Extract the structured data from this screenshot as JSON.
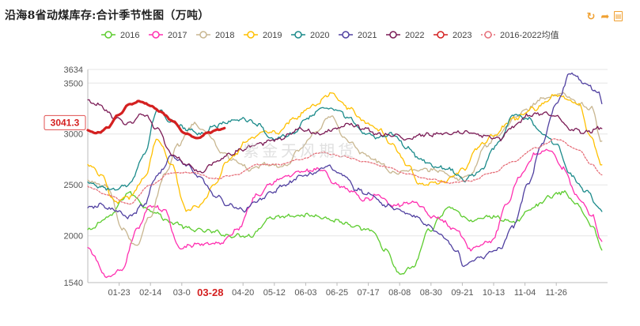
{
  "title": "沿海8省动煤库存:合计季节性图（万吨）",
  "toolbar": [
    {
      "name": "refresh-icon",
      "glyph": "↻"
    },
    {
      "name": "share-icon",
      "glyph": "➦"
    },
    {
      "name": "export-icon",
      "glyph": "▤"
    }
  ],
  "chart_data": {
    "type": "line",
    "title": "沿海8省动煤库存:合计季节性图（万吨）",
    "ylim": [
      1540,
      3634
    ],
    "yticks": [
      1540,
      2000,
      2500,
      3000,
      3500,
      3634
    ],
    "xticks": [
      {
        "label": "01-23",
        "day": 23
      },
      {
        "label": "02-14",
        "day": 45
      },
      {
        "label": "03-0",
        "day": 67
      },
      {
        "label": "04-20",
        "day": 110
      },
      {
        "label": "05-12",
        "day": 132
      },
      {
        "label": "06-03",
        "day": 154
      },
      {
        "label": "06-25",
        "day": 176
      },
      {
        "label": "07-17",
        "day": 198
      },
      {
        "label": "08-08",
        "day": 220
      },
      {
        "label": "08-30",
        "day": 242
      },
      {
        "label": "09-21",
        "day": 264
      },
      {
        "label": "10-13",
        "day": 286
      },
      {
        "label": "11-04",
        "day": 308
      },
      {
        "label": "11-26",
        "day": 330
      }
    ],
    "current_date_label": {
      "label": "03-28",
      "day": 87
    },
    "current_value_label": {
      "label": "3041.3",
      "value": 3041.3
    },
    "watermark": "紫金天风期货",
    "series": [
      {
        "name": "2016",
        "color": "#5ccc2e",
        "style": "solid",
        "width": 1.3,
        "points": [
          [
            1,
            2050
          ],
          [
            15,
            2180
          ],
          [
            30,
            2420
          ],
          [
            45,
            2250
          ],
          [
            60,
            2130
          ],
          [
            75,
            2060
          ],
          [
            90,
            2040
          ],
          [
            100,
            2000
          ],
          [
            115,
            2000
          ],
          [
            130,
            2180
          ],
          [
            145,
            2200
          ],
          [
            160,
            2200
          ],
          [
            175,
            2150
          ],
          [
            190,
            2080
          ],
          [
            200,
            2050
          ],
          [
            210,
            1860
          ],
          [
            220,
            1620
          ],
          [
            230,
            1700
          ],
          [
            240,
            2050
          ],
          [
            255,
            2280
          ],
          [
            270,
            2150
          ],
          [
            285,
            2190
          ],
          [
            300,
            2130
          ],
          [
            315,
            2290
          ],
          [
            325,
            2380
          ],
          [
            335,
            2430
          ],
          [
            345,
            2300
          ],
          [
            355,
            2100
          ],
          [
            362,
            1880
          ]
        ]
      },
      {
        "name": "2017",
        "color": "#ff2fb0",
        "style": "solid",
        "width": 1.3,
        "points": [
          [
            1,
            1870
          ],
          [
            15,
            1590
          ],
          [
            25,
            1660
          ],
          [
            35,
            2050
          ],
          [
            45,
            2300
          ],
          [
            55,
            2250
          ],
          [
            65,
            1880
          ],
          [
            80,
            1920
          ],
          [
            95,
            1930
          ],
          [
            105,
            2050
          ],
          [
            120,
            2400
          ],
          [
            130,
            2520
          ],
          [
            140,
            2580
          ],
          [
            150,
            2630
          ],
          [
            165,
            2650
          ],
          [
            175,
            2500
          ],
          [
            185,
            2450
          ],
          [
            195,
            2350
          ],
          [
            205,
            2400
          ],
          [
            215,
            2300
          ],
          [
            230,
            2330
          ],
          [
            245,
            2180
          ],
          [
            260,
            2060
          ],
          [
            270,
            1870
          ],
          [
            285,
            1950
          ],
          [
            295,
            2300
          ],
          [
            305,
            2600
          ],
          [
            315,
            2800
          ],
          [
            325,
            2850
          ],
          [
            335,
            2660
          ],
          [
            345,
            2380
          ],
          [
            355,
            2200
          ],
          [
            362,
            1950
          ]
        ]
      },
      {
        "name": "2018",
        "color": "#c8b690",
        "style": "solid",
        "width": 1.3,
        "points": [
          [
            1,
            2540
          ],
          [
            15,
            2480
          ],
          [
            25,
            2070
          ],
          [
            35,
            1900
          ],
          [
            45,
            2200
          ],
          [
            55,
            2600
          ],
          [
            65,
            2900
          ],
          [
            75,
            3100
          ],
          [
            85,
            3010
          ],
          [
            95,
            2820
          ],
          [
            105,
            2730
          ],
          [
            115,
            2650
          ],
          [
            125,
            2700
          ],
          [
            140,
            2680
          ],
          [
            150,
            2850
          ],
          [
            160,
            3000
          ],
          [
            172,
            3180
          ],
          [
            182,
            2950
          ],
          [
            195,
            2800
          ],
          [
            205,
            2730
          ],
          [
            215,
            2620
          ],
          [
            230,
            2650
          ],
          [
            245,
            2650
          ],
          [
            260,
            2560
          ],
          [
            270,
            2600
          ],
          [
            280,
            2880
          ],
          [
            290,
            3000
          ],
          [
            300,
            3150
          ],
          [
            310,
            3250
          ],
          [
            320,
            3350
          ],
          [
            335,
            3400
          ],
          [
            345,
            3300
          ],
          [
            355,
            3250
          ],
          [
            362,
            2920
          ]
        ]
      },
      {
        "name": "2019",
        "color": "#ffc000",
        "style": "solid",
        "width": 1.3,
        "points": [
          [
            1,
            2700
          ],
          [
            10,
            2600
          ],
          [
            20,
            2330
          ],
          [
            30,
            2380
          ],
          [
            40,
            2550
          ],
          [
            50,
            2950
          ],
          [
            60,
            2700
          ],
          [
            70,
            2250
          ],
          [
            80,
            2300
          ],
          [
            90,
            2500
          ],
          [
            100,
            2750
          ],
          [
            115,
            2950
          ],
          [
            125,
            3020
          ],
          [
            135,
            3020
          ],
          [
            145,
            3150
          ],
          [
            160,
            3280
          ],
          [
            172,
            3400
          ],
          [
            185,
            3250
          ],
          [
            195,
            3120
          ],
          [
            205,
            3050
          ],
          [
            215,
            2900
          ],
          [
            225,
            2700
          ],
          [
            235,
            2500
          ],
          [
            250,
            2530
          ],
          [
            265,
            2650
          ],
          [
            275,
            2870
          ],
          [
            285,
            2980
          ],
          [
            300,
            3150
          ],
          [
            315,
            3250
          ],
          [
            330,
            3380
          ],
          [
            345,
            3300
          ],
          [
            355,
            2950
          ],
          [
            362,
            2680
          ]
        ]
      },
      {
        "name": "2020",
        "color": "#1a8a8a",
        "style": "solid",
        "width": 1.3,
        "points": [
          [
            1,
            2530
          ],
          [
            10,
            2480
          ],
          [
            20,
            2450
          ],
          [
            30,
            2500
          ],
          [
            40,
            2780
          ],
          [
            50,
            3240
          ],
          [
            60,
            3120
          ],
          [
            70,
            3050
          ],
          [
            80,
            3000
          ],
          [
            90,
            3080
          ],
          [
            100,
            3120
          ],
          [
            110,
            3150
          ],
          [
            120,
            3100
          ],
          [
            130,
            2950
          ],
          [
            145,
            3000
          ],
          [
            155,
            3150
          ],
          [
            165,
            3250
          ],
          [
            175,
            3250
          ],
          [
            185,
            3150
          ],
          [
            195,
            3000
          ],
          [
            205,
            2970
          ],
          [
            215,
            3000
          ],
          [
            225,
            2870
          ],
          [
            235,
            2750
          ],
          [
            245,
            2680
          ],
          [
            255,
            2650
          ],
          [
            265,
            2550
          ],
          [
            275,
            2620
          ],
          [
            290,
            2920
          ],
          [
            300,
            3200
          ],
          [
            310,
            3150
          ],
          [
            320,
            3000
          ],
          [
            330,
            2900
          ],
          [
            340,
            2600
          ],
          [
            350,
            2450
          ],
          [
            362,
            2250
          ]
        ]
      },
      {
        "name": "2021",
        "color": "#5040a0",
        "style": "solid",
        "width": 1.3,
        "points": [
          [
            1,
            2270
          ],
          [
            10,
            2300
          ],
          [
            20,
            2250
          ],
          [
            30,
            2180
          ],
          [
            40,
            2300
          ],
          [
            50,
            2600
          ],
          [
            60,
            2780
          ],
          [
            70,
            2700
          ],
          [
            80,
            2570
          ],
          [
            90,
            2400
          ],
          [
            100,
            2300
          ],
          [
            110,
            2250
          ],
          [
            120,
            2340
          ],
          [
            130,
            2430
          ],
          [
            140,
            2500
          ],
          [
            150,
            2580
          ],
          [
            160,
            2620
          ],
          [
            170,
            2680
          ],
          [
            180,
            2600
          ],
          [
            190,
            2450
          ],
          [
            200,
            2400
          ],
          [
            210,
            2300
          ],
          [
            220,
            2250
          ],
          [
            230,
            2200
          ],
          [
            240,
            2100
          ],
          [
            250,
            2000
          ],
          [
            260,
            1850
          ],
          [
            265,
            1700
          ],
          [
            275,
            1780
          ],
          [
            290,
            1870
          ],
          [
            300,
            2100
          ],
          [
            310,
            2500
          ],
          [
            320,
            2900
          ],
          [
            330,
            3300
          ],
          [
            340,
            3600
          ],
          [
            350,
            3500
          ],
          [
            360,
            3400
          ],
          [
            362,
            3310
          ]
        ]
      },
      {
        "name": "2022",
        "color": "#7a1a55",
        "style": "solid",
        "width": 1.3,
        "points": [
          [
            1,
            3320
          ],
          [
            10,
            3280
          ],
          [
            20,
            3150
          ],
          [
            30,
            3100
          ],
          [
            40,
            3200
          ],
          [
            50,
            3050
          ],
          [
            60,
            2800
          ],
          [
            70,
            2700
          ],
          [
            80,
            2620
          ],
          [
            90,
            2720
          ],
          [
            100,
            2800
          ],
          [
            110,
            2850
          ],
          [
            120,
            2900
          ],
          [
            135,
            2950
          ],
          [
            150,
            3050
          ],
          [
            165,
            3000
          ],
          [
            175,
            3050
          ],
          [
            185,
            3100
          ],
          [
            195,
            3050
          ],
          [
            205,
            3000
          ],
          [
            215,
            2990
          ],
          [
            225,
            2950
          ],
          [
            235,
            2990
          ],
          [
            250,
            3000
          ],
          [
            265,
            3020
          ],
          [
            280,
            2980
          ],
          [
            290,
            2950
          ],
          [
            300,
            3080
          ],
          [
            310,
            3180
          ],
          [
            320,
            3200
          ],
          [
            330,
            3180
          ],
          [
            340,
            3050
          ],
          [
            350,
            3020
          ],
          [
            362,
            3060
          ]
        ]
      },
      {
        "name": "2023",
        "color": "#d42020",
        "style": "solid",
        "width": 3.2,
        "points": [
          [
            1,
            3030
          ],
          [
            8,
            3010
          ],
          [
            15,
            3060
          ],
          [
            22,
            3180
          ],
          [
            30,
            3290
          ],
          [
            38,
            3320
          ],
          [
            45,
            3280
          ],
          [
            52,
            3220
          ],
          [
            60,
            3130
          ],
          [
            70,
            3000
          ],
          [
            78,
            2960
          ],
          [
            85,
            3010
          ],
          [
            92,
            3040
          ],
          [
            97,
            3060
          ]
        ]
      },
      {
        "name": "2016-2022均值",
        "color": "#e6707a",
        "style": "dotted",
        "width": 1.3,
        "points": [
          [
            1,
            2480
          ],
          [
            15,
            2400
          ],
          [
            30,
            2310
          ],
          [
            45,
            2500
          ],
          [
            60,
            2620
          ],
          [
            75,
            2620
          ],
          [
            90,
            2560
          ],
          [
            105,
            2600
          ],
          [
            120,
            2700
          ],
          [
            135,
            2700
          ],
          [
            150,
            2750
          ],
          [
            165,
            2820
          ],
          [
            180,
            2780
          ],
          [
            195,
            2730
          ],
          [
            210,
            2680
          ],
          [
            225,
            2610
          ],
          [
            240,
            2560
          ],
          [
            255,
            2520
          ],
          [
            270,
            2540
          ],
          [
            285,
            2620
          ],
          [
            300,
            2730
          ],
          [
            315,
            2860
          ],
          [
            330,
            2950
          ],
          [
            345,
            2850
          ],
          [
            355,
            2700
          ],
          [
            362,
            2600
          ]
        ]
      }
    ]
  }
}
